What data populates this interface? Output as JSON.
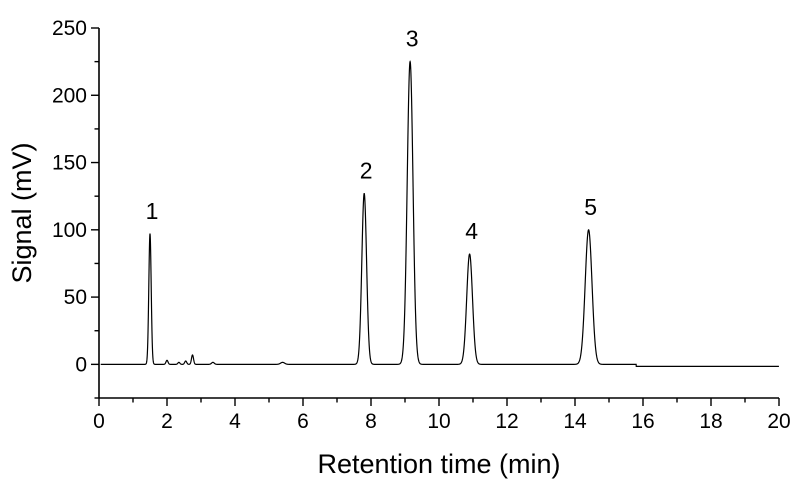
{
  "chart_data": {
    "type": "line",
    "title": "",
    "xlabel": "Retention time (min)",
    "ylabel": "Signal (mV)",
    "xlim": [
      0,
      20
    ],
    "ylim": [
      -25,
      250
    ],
    "x_ticks": [
      0,
      2,
      4,
      6,
      8,
      10,
      12,
      14,
      16,
      18,
      20
    ],
    "x_minor_ticks": [
      1,
      3,
      5,
      7,
      9,
      11,
      13,
      15,
      17,
      19
    ],
    "y_ticks": [
      0,
      50,
      100,
      150,
      200,
      250
    ],
    "y_minor_ticks": [
      -25,
      25,
      75,
      125,
      175,
      225
    ],
    "grid": false,
    "legend": "none",
    "baseline": 0,
    "peaks": [
      {
        "label": "1",
        "x": 1.5,
        "y": 97,
        "sigma": 0.035
      },
      {
        "label": "2",
        "x": 7.8,
        "y": 127,
        "sigma": 0.07
      },
      {
        "label": "3",
        "x": 9.15,
        "y": 225,
        "sigma": 0.085
      },
      {
        "label": "4",
        "x": 10.9,
        "y": 82,
        "sigma": 0.085
      },
      {
        "label": "5",
        "x": 14.4,
        "y": 100,
        "sigma": 0.1
      }
    ],
    "minor_peaks": [
      {
        "x": 2.0,
        "y": 3,
        "sigma": 0.03
      },
      {
        "x": 2.35,
        "y": 1.5,
        "sigma": 0.03
      },
      {
        "x": 2.55,
        "y": 2.5,
        "sigma": 0.03
      },
      {
        "x": 2.75,
        "y": 7,
        "sigma": 0.03
      },
      {
        "x": 3.35,
        "y": 1.5,
        "sigma": 0.04
      },
      {
        "x": 5.4,
        "y": 1.5,
        "sigma": 0.06
      }
    ],
    "baseline_step": {
      "x": 15.8,
      "y": -1.5
    }
  }
}
